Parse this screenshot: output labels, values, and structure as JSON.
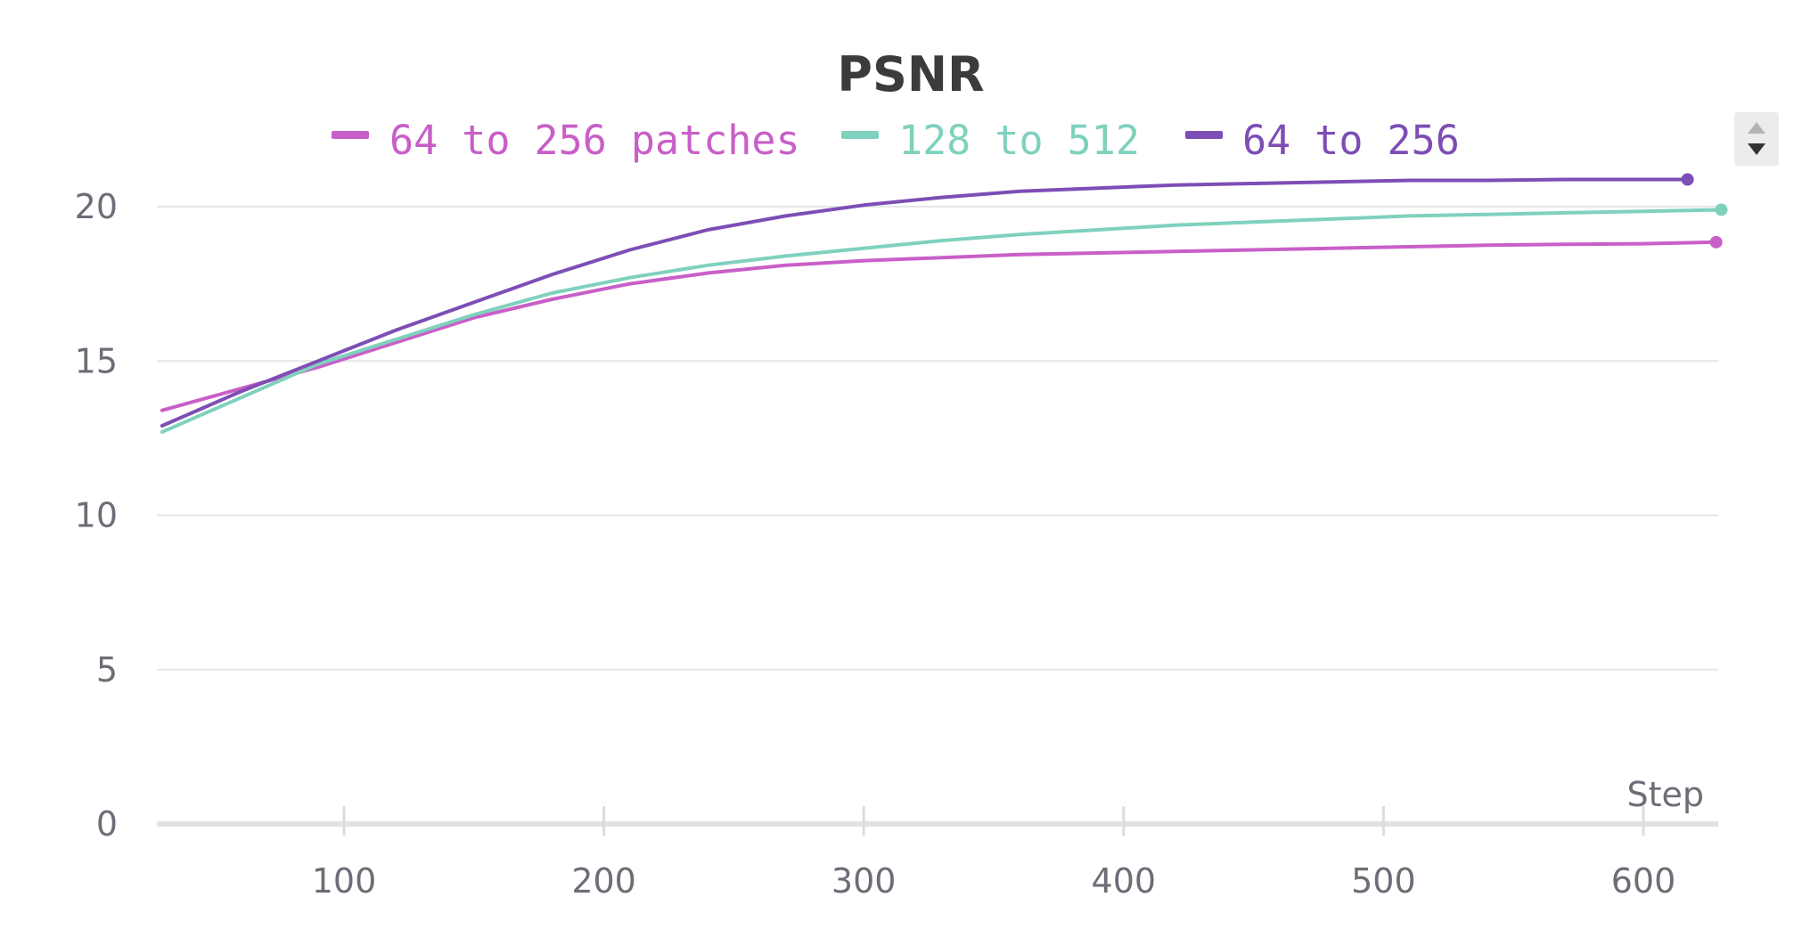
{
  "chart_data": {
    "type": "line",
    "title": "PSNR",
    "xlabel": "Step",
    "ylabel": "",
    "xlim": [
      28,
      630
    ],
    "ylim": [
      0,
      21
    ],
    "x_ticks": [
      100,
      200,
      300,
      400,
      500,
      600
    ],
    "y_ticks": [
      0,
      5,
      10,
      15,
      20
    ],
    "grid": true,
    "legend": "top-center",
    "series": [
      {
        "name": "64 to 256 patches",
        "color": "#c85fc8",
        "x": [
          30,
          60,
          90,
          120,
          150,
          180,
          210,
          240,
          270,
          300,
          330,
          360,
          390,
          420,
          450,
          480,
          510,
          540,
          570,
          600,
          628
        ],
        "y": [
          13.4,
          14.1,
          14.8,
          15.6,
          16.4,
          17.0,
          17.5,
          17.85,
          18.1,
          18.25,
          18.35,
          18.45,
          18.5,
          18.55,
          18.6,
          18.65,
          18.7,
          18.75,
          18.78,
          18.8,
          18.85
        ]
      },
      {
        "name": "128 to 512",
        "color": "#7fd1bd",
        "x": [
          30,
          60,
          90,
          120,
          150,
          180,
          210,
          240,
          270,
          300,
          330,
          360,
          390,
          420,
          450,
          480,
          510,
          540,
          570,
          600,
          630
        ],
        "y": [
          12.7,
          13.8,
          14.9,
          15.7,
          16.5,
          17.2,
          17.7,
          18.1,
          18.4,
          18.65,
          18.9,
          19.1,
          19.25,
          19.4,
          19.5,
          19.6,
          19.7,
          19.75,
          19.8,
          19.85,
          19.9
        ]
      },
      {
        "name": "64 to 256",
        "color": "#7d4eb5",
        "x": [
          30,
          60,
          90,
          120,
          150,
          180,
          210,
          240,
          270,
          300,
          330,
          360,
          390,
          420,
          450,
          480,
          510,
          540,
          570,
          600,
          617
        ],
        "y": [
          12.9,
          14.0,
          15.0,
          16.0,
          16.9,
          17.8,
          18.6,
          19.25,
          19.7,
          20.05,
          20.3,
          20.5,
          20.6,
          20.7,
          20.75,
          20.8,
          20.85,
          20.85,
          20.88,
          20.88,
          20.88
        ]
      }
    ]
  },
  "legend_scroll": {
    "up_icon": "triangle-up-icon",
    "down_icon": "triangle-down-icon"
  }
}
